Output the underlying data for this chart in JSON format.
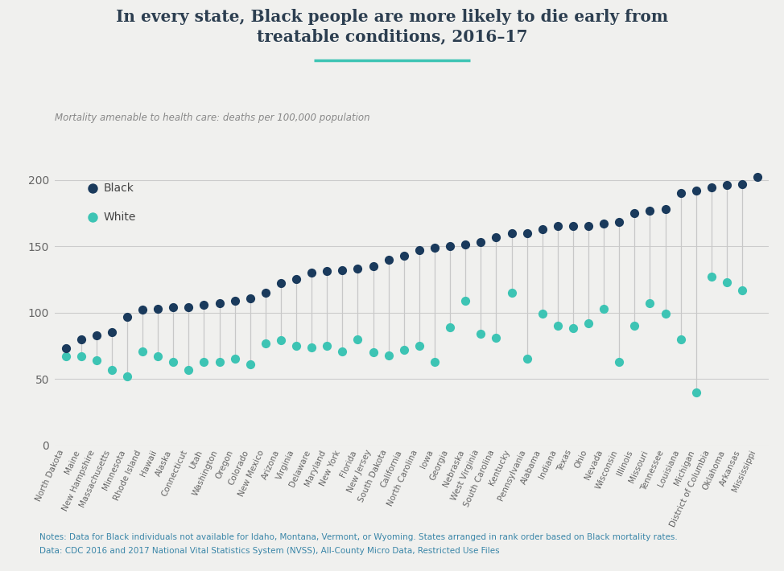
{
  "title_line1": "In every state, Black people are more likely to die early from",
  "title_line2": "treatable conditions, 2016–17",
  "ylabel": "Mortality amenable to health care: deaths per 100,000 population",
  "bg_color": "#f0f0ee",
  "black_color": "#1a3a5c",
  "white_color": "#3dc4b4",
  "title_color": "#2c3e50",
  "note_color": "#3a86a8",
  "states": [
    "North Dakota",
    "Maine",
    "New Hampshire",
    "Massachusetts",
    "Minnesota",
    "Rhode Island",
    "Hawaii",
    "Alaska",
    "Connecticut",
    "Utah",
    "Washington",
    "Oregon",
    "Colorado",
    "New Mexico",
    "Arizona",
    "Virginia",
    "Delaware",
    "Maryland",
    "New York",
    "Florida",
    "New Jersey",
    "South Dakota",
    "California",
    "North Carolina",
    "Iowa",
    "Georgia",
    "Nebraska",
    "West Virginia",
    "South Carolina",
    "Kentucky",
    "Pennsylvania",
    "Alabama",
    "Indiana",
    "Texas",
    "Ohio",
    "Nevada",
    "Wisconsin",
    "Illinois",
    "Missouri",
    "Tennessee",
    "Louisiana",
    "Michigan",
    "District of Columbia",
    "Oklahoma",
    "Arkansas",
    "Mississippi"
  ],
  "black_values": [
    73,
    80,
    83,
    85,
    97,
    102,
    103,
    104,
    104,
    106,
    107,
    109,
    111,
    115,
    122,
    125,
    130,
    131,
    132,
    133,
    135,
    140,
    143,
    147,
    149,
    150,
    151,
    153,
    157,
    160,
    160,
    163,
    165,
    165,
    165,
    167,
    168,
    175,
    177,
    178,
    190,
    192,
    194,
    196,
    197,
    202
  ],
  "white_values": [
    67,
    67,
    64,
    57,
    52,
    71,
    67,
    63,
    57,
    63,
    63,
    65,
    61,
    77,
    79,
    75,
    74,
    75,
    71,
    80,
    70,
    68,
    72,
    75,
    63,
    89,
    109,
    84,
    81,
    115,
    65,
    99,
    90,
    88,
    92,
    103,
    63,
    90,
    107,
    99,
    80,
    40,
    127,
    123,
    117,
    null
  ],
  "ylim": [
    0,
    215
  ],
  "yticks": [
    0,
    50,
    100,
    150,
    200
  ],
  "notes_line1": "Notes: Data for Black individuals not available for Idaho, Montana, Vermont, or Wyoming. States arranged in rank order based on Black mortality rates.",
  "notes_line2": "Data: CDC 2016 and 2017 National Vital Statistics System (NVSS), All-County Micro Data, Restricted Use Files"
}
